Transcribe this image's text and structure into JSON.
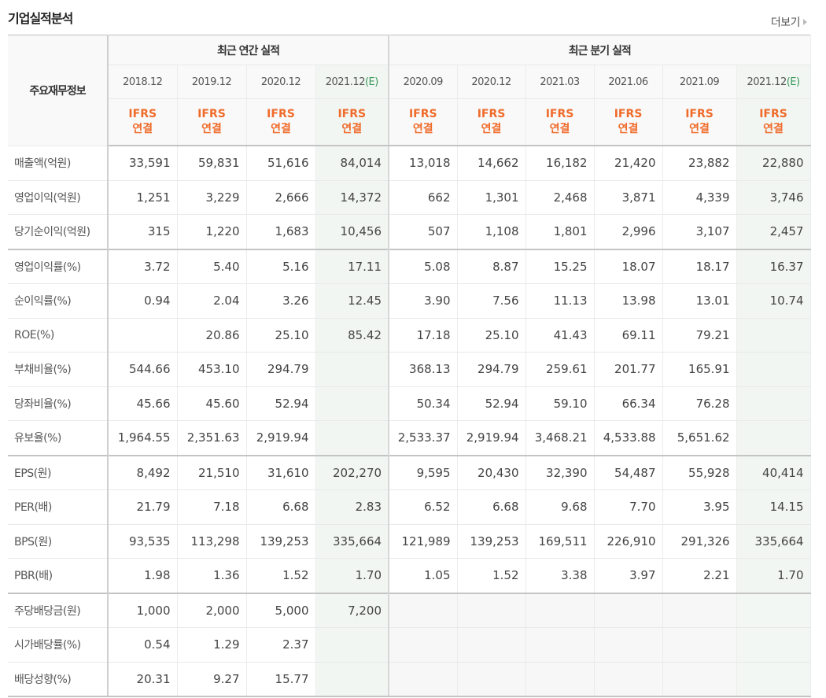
{
  "title": "기업실적분석",
  "more_label": "더보기",
  "header": {
    "corner_label": "주요재무정보",
    "annual_group": "최근 연간 실적",
    "quarter_group": "최근 분기 실적",
    "annual_periods": [
      "2018.12",
      "2019.12",
      "2020.12",
      "2021.12"
    ],
    "quarter_periods": [
      "2020.09",
      "2020.12",
      "2021.03",
      "2021.06",
      "2021.09",
      "2021.12"
    ],
    "estimate_mark": "(E)",
    "ifrs_line1": "IFRS",
    "ifrs_line2": "연결"
  },
  "colors": {
    "ifrs": "#f06b2a",
    "estimate_mark": "#3a9a5a",
    "estimate_bg": "#f1f6f3"
  },
  "rows": [
    {
      "label": "매출액(억원)",
      "annual": [
        "33,591",
        "59,831",
        "51,616",
        "84,014"
      ],
      "quarter": [
        "13,018",
        "14,662",
        "16,182",
        "21,420",
        "23,882",
        "22,880"
      ]
    },
    {
      "label": "영업이익(억원)",
      "annual": [
        "1,251",
        "3,229",
        "2,666",
        "14,372"
      ],
      "quarter": [
        "662",
        "1,301",
        "2,468",
        "3,871",
        "4,339",
        "3,746"
      ]
    },
    {
      "label": "당기순이익(억원)",
      "annual": [
        "315",
        "1,220",
        "1,683",
        "10,456"
      ],
      "quarter": [
        "507",
        "1,108",
        "1,801",
        "2,996",
        "3,107",
        "2,457"
      ]
    },
    {
      "label": "영업이익률(%)",
      "annual": [
        "3.72",
        "5.40",
        "5.16",
        "17.11"
      ],
      "quarter": [
        "5.08",
        "8.87",
        "15.25",
        "18.07",
        "18.17",
        "16.37"
      ]
    },
    {
      "label": "순이익률(%)",
      "annual": [
        "0.94",
        "2.04",
        "3.26",
        "12.45"
      ],
      "quarter": [
        "3.90",
        "7.56",
        "11.13",
        "13.98",
        "13.01",
        "10.74"
      ]
    },
    {
      "label": "ROE(%)",
      "annual": [
        "",
        "20.86",
        "25.10",
        "85.42"
      ],
      "quarter": [
        "17.18",
        "25.10",
        "41.43",
        "69.11",
        "79.21",
        ""
      ]
    },
    {
      "label": "부채비율(%)",
      "annual": [
        "544.66",
        "453.10",
        "294.79",
        ""
      ],
      "quarter": [
        "368.13",
        "294.79",
        "259.61",
        "201.77",
        "165.91",
        ""
      ]
    },
    {
      "label": "당좌비율(%)",
      "annual": [
        "45.66",
        "45.60",
        "52.94",
        ""
      ],
      "quarter": [
        "50.34",
        "52.94",
        "59.10",
        "66.34",
        "76.28",
        ""
      ]
    },
    {
      "label": "유보율(%)",
      "annual": [
        "1,964.55",
        "2,351.63",
        "2,919.94",
        ""
      ],
      "quarter": [
        "2,533.37",
        "2,919.94",
        "3,468.21",
        "4,533.88",
        "5,651.62",
        ""
      ]
    },
    {
      "label": "EPS(원)",
      "annual": [
        "8,492",
        "21,510",
        "31,610",
        "202,270"
      ],
      "quarter": [
        "9,595",
        "20,430",
        "32,390",
        "54,487",
        "55,928",
        "40,414"
      ]
    },
    {
      "label": "PER(배)",
      "annual": [
        "21.79",
        "7.18",
        "6.68",
        "2.83"
      ],
      "quarter": [
        "6.52",
        "6.68",
        "9.68",
        "7.70",
        "3.95",
        "14.15"
      ]
    },
    {
      "label": "BPS(원)",
      "annual": [
        "93,535",
        "113,298",
        "139,253",
        "335,664"
      ],
      "quarter": [
        "121,989",
        "139,253",
        "169,511",
        "226,910",
        "291,326",
        "335,664"
      ]
    },
    {
      "label": "PBR(배)",
      "annual": [
        "1.98",
        "1.36",
        "1.52",
        "1.70"
      ],
      "quarter": [
        "1.05",
        "1.52",
        "3.38",
        "3.97",
        "2.21",
        "1.70"
      ]
    },
    {
      "label": "주당배당금(원)",
      "annual": [
        "1,000",
        "2,000",
        "5,000",
        "7,200"
      ],
      "quarter": [
        "",
        "",
        "",
        "",
        "",
        ""
      ]
    },
    {
      "label": "시가배당률(%)",
      "annual": [
        "0.54",
        "1.29",
        "2.37",
        ""
      ],
      "quarter": [
        "",
        "",
        "",
        "",
        "",
        ""
      ]
    },
    {
      "label": "배당성향(%)",
      "annual": [
        "20.31",
        "9.27",
        "15.77",
        ""
      ],
      "quarter": [
        "",
        "",
        "",
        "",
        "",
        ""
      ]
    }
  ]
}
